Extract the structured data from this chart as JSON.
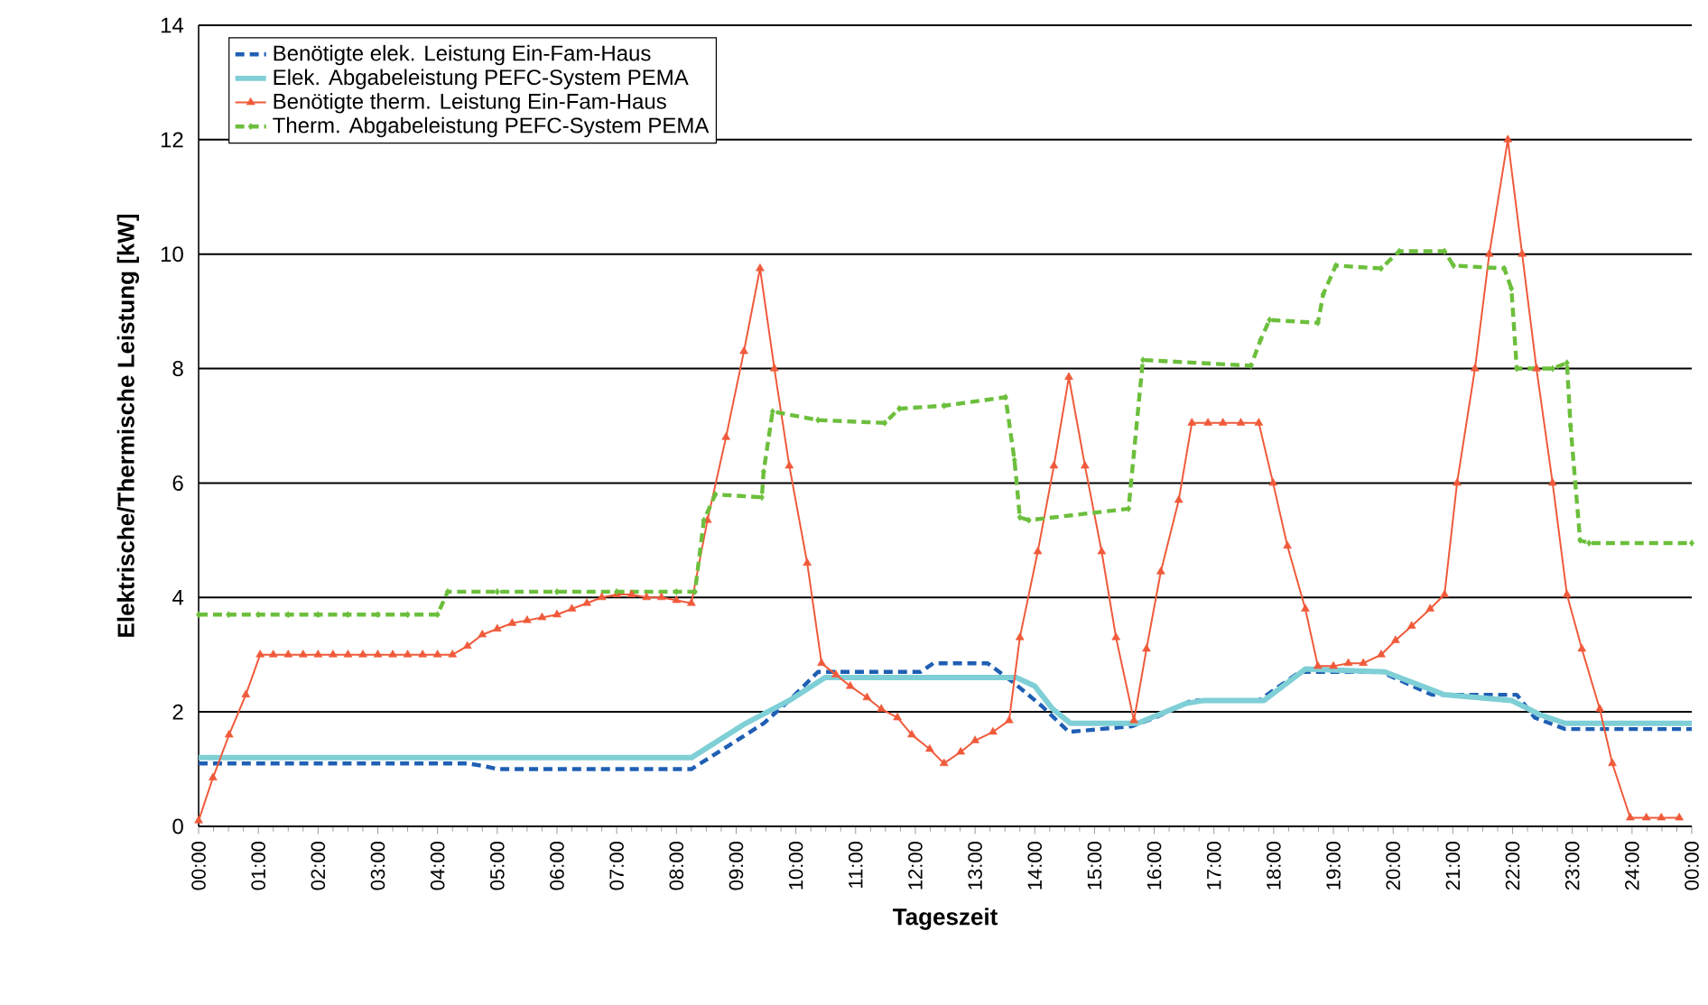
{
  "chart_data": {
    "type": "line",
    "xlabel": "Tageszeit",
    "ylabel": "Elektrische/Thermische Leistung [kW]",
    "xlim": [
      0,
      25
    ],
    "ylim": [
      0,
      14
    ],
    "yticks": [
      0,
      2,
      4,
      6,
      8,
      10,
      12,
      14
    ],
    "xticks": [
      {
        "value": 0,
        "label": "00:00"
      },
      {
        "value": 1,
        "label": "01:00"
      },
      {
        "value": 2,
        "label": "02:00"
      },
      {
        "value": 3,
        "label": "03:00"
      },
      {
        "value": 4,
        "label": "04:00"
      },
      {
        "value": 5,
        "label": "05:00"
      },
      {
        "value": 6,
        "label": "06:00"
      },
      {
        "value": 7,
        "label": "07:00"
      },
      {
        "value": 8,
        "label": "08:00"
      },
      {
        "value": 9,
        "label": "09:00"
      },
      {
        "value": 10,
        "label": "10:00"
      },
      {
        "value": 11,
        "label": "11:00"
      },
      {
        "value": 12,
        "label": "12:00"
      },
      {
        "value": 13,
        "label": "13:00"
      },
      {
        "value": 14,
        "label": "14:00"
      },
      {
        "value": 15,
        "label": "15:00"
      },
      {
        "value": 16,
        "label": "16:00"
      },
      {
        "value": 17,
        "label": "17:00"
      },
      {
        "value": 18,
        "label": "18:00"
      },
      {
        "value": 19,
        "label": "19:00"
      },
      {
        "value": 20,
        "label": "20:00"
      },
      {
        "value": 21,
        "label": "21:00"
      },
      {
        "value": 22,
        "label": "22:00"
      },
      {
        "value": 23,
        "label": "23:00"
      },
      {
        "value": 24,
        "label": "24:00"
      },
      {
        "value": 25,
        "label": "00:00"
      }
    ],
    "grid": "y",
    "legend": "top left",
    "series": [
      {
        "name": "Benötigte elek. Leistung Ein-Fam-Haus",
        "color": "#1f5fb4",
        "line_style": "dashed",
        "marker": "none",
        "x": [
          0,
          4.5,
          4.8,
          5.0,
          8.25,
          8.86,
          9.46,
          9.89,
          10.37,
          12.09,
          12.3,
          13.21,
          13.66,
          14.12,
          14.57,
          15.63,
          16.02,
          16.63,
          17.75,
          18.44,
          19.8,
          20.65,
          22.07,
          22.37,
          22.88,
          25
        ],
        "values": [
          1.1,
          1.1,
          1.05,
          1.0,
          1.0,
          1.4,
          1.8,
          2.2,
          2.7,
          2.7,
          2.85,
          2.85,
          2.5,
          2.1,
          1.65,
          1.75,
          1.9,
          2.2,
          2.2,
          2.7,
          2.7,
          2.3,
          2.3,
          1.9,
          1.7,
          1.7
        ]
      },
      {
        "name": "Elek. Abgabeleistung PEFC-System PEMA",
        "color": "#7fcfd6",
        "line_style": "solid",
        "marker": "none",
        "x": [
          0,
          8.25,
          9.16,
          9.89,
          10.49,
          13.69,
          14.0,
          14.3,
          14.6,
          15.72,
          16.54,
          16.84,
          17.84,
          18.53,
          19.86,
          20.86,
          21.98,
          22.46,
          22.88,
          25
        ],
        "values": [
          1.2,
          1.2,
          1.8,
          2.2,
          2.6,
          2.6,
          2.45,
          2.05,
          1.8,
          1.8,
          2.15,
          2.2,
          2.2,
          2.75,
          2.7,
          2.3,
          2.2,
          1.95,
          1.8,
          1.8
        ]
      },
      {
        "name": "Benötigte therm. Leistung Ein-Fam-Haus",
        "color": "#f05a3a",
        "line_style": "solid",
        "marker": "triangle",
        "x": [
          0,
          0.24,
          0.51,
          0.79,
          1.03,
          1.25,
          1.5,
          1.75,
          2.0,
          2.25,
          2.5,
          2.75,
          3.0,
          3.25,
          3.5,
          3.75,
          4.0,
          4.25,
          4.5,
          4.75,
          5.0,
          5.25,
          5.5,
          5.75,
          6.0,
          6.25,
          6.5,
          6.75,
          7.0,
          7.25,
          7.5,
          7.75,
          8.0,
          8.25,
          8.52,
          8.83,
          9.13,
          9.4,
          9.64,
          9.89,
          10.19,
          10.43,
          10.67,
          10.91,
          11.19,
          11.43,
          11.7,
          11.94,
          12.24,
          12.48,
          12.76,
          13.0,
          13.3,
          13.57,
          13.75,
          14.05,
          14.32,
          14.57,
          14.84,
          15.12,
          15.36,
          15.66,
          15.87,
          16.11,
          16.41,
          16.63,
          16.9,
          17.15,
          17.45,
          17.75,
          17.99,
          18.23,
          18.53,
          18.74,
          19.0,
          19.25,
          19.5,
          19.8,
          20.04,
          20.31,
          20.62,
          20.86,
          21.07,
          21.37,
          21.61,
          21.92,
          22.16,
          22.4,
          22.67,
          22.91,
          23.16,
          23.46,
          23.67,
          23.97,
          24.24,
          24.49,
          24.79
        ],
        "values": [
          0.1,
          0.85,
          1.6,
          2.3,
          3.0,
          3.0,
          3.0,
          3.0,
          3.0,
          3.0,
          3.0,
          3.0,
          3.0,
          3.0,
          3.0,
          3.0,
          3.0,
          3.0,
          3.15,
          3.35,
          3.45,
          3.55,
          3.6,
          3.65,
          3.7,
          3.8,
          3.9,
          4.0,
          4.05,
          4.05,
          4.0,
          4.0,
          3.95,
          3.9,
          5.35,
          6.8,
          8.3,
          9.75,
          8.0,
          6.3,
          4.6,
          2.85,
          2.65,
          2.45,
          2.25,
          2.05,
          1.9,
          1.6,
          1.35,
          1.1,
          1.3,
          1.5,
          1.65,
          1.85,
          3.3,
          4.8,
          6.3,
          7.85,
          6.3,
          4.8,
          3.3,
          1.85,
          3.1,
          4.45,
          5.7,
          7.05,
          7.05,
          7.05,
          7.05,
          7.05,
          6.0,
          4.9,
          3.8,
          2.8,
          2.8,
          2.85,
          2.85,
          3.0,
          3.25,
          3.5,
          3.8,
          4.05,
          6.0,
          8.0,
          10.0,
          12.0,
          10.0,
          8.0,
          6.0,
          4.05,
          3.1,
          2.05,
          1.1,
          0.15,
          0.15,
          0.15,
          0.15
        ]
      },
      {
        "name": "Therm. Abgabeleistung PEFC-System PEMA",
        "color": "#6cbf3c",
        "line_style": "dashed",
        "marker": "diamond",
        "x": [
          0,
          0.5,
          1.0,
          1.5,
          2.0,
          2.5,
          3.0,
          3.5,
          4.0,
          4.17,
          5.0,
          6.0,
          7.0,
          8.0,
          8.31,
          8.46,
          8.65,
          9.43,
          9.46,
          9.61,
          10.37,
          11.49,
          11.73,
          12.48,
          13.51,
          13.66,
          13.75,
          13.9,
          15.57,
          15.81,
          17.62,
          17.78,
          17.93,
          18.74,
          18.83,
          19.04,
          19.8,
          20.1,
          20.86,
          21.01,
          21.86,
          21.98,
          22.07,
          22.67,
          22.91,
          22.97,
          23.13,
          23.28,
          25
        ],
        "values": [
          3.7,
          3.7,
          3.7,
          3.7,
          3.7,
          3.7,
          3.7,
          3.7,
          3.7,
          4.1,
          4.1,
          4.1,
          4.1,
          4.1,
          4.1,
          5.35,
          5.8,
          5.75,
          6.2,
          7.25,
          7.1,
          7.05,
          7.3,
          7.35,
          7.5,
          6.4,
          5.4,
          5.35,
          5.55,
          8.15,
          8.05,
          8.5,
          8.85,
          8.8,
          9.3,
          9.8,
          9.75,
          10.05,
          10.05,
          9.8,
          9.75,
          9.4,
          8.0,
          8.0,
          8.1,
          7.0,
          5.0,
          4.95,
          4.95
        ]
      }
    ]
  }
}
